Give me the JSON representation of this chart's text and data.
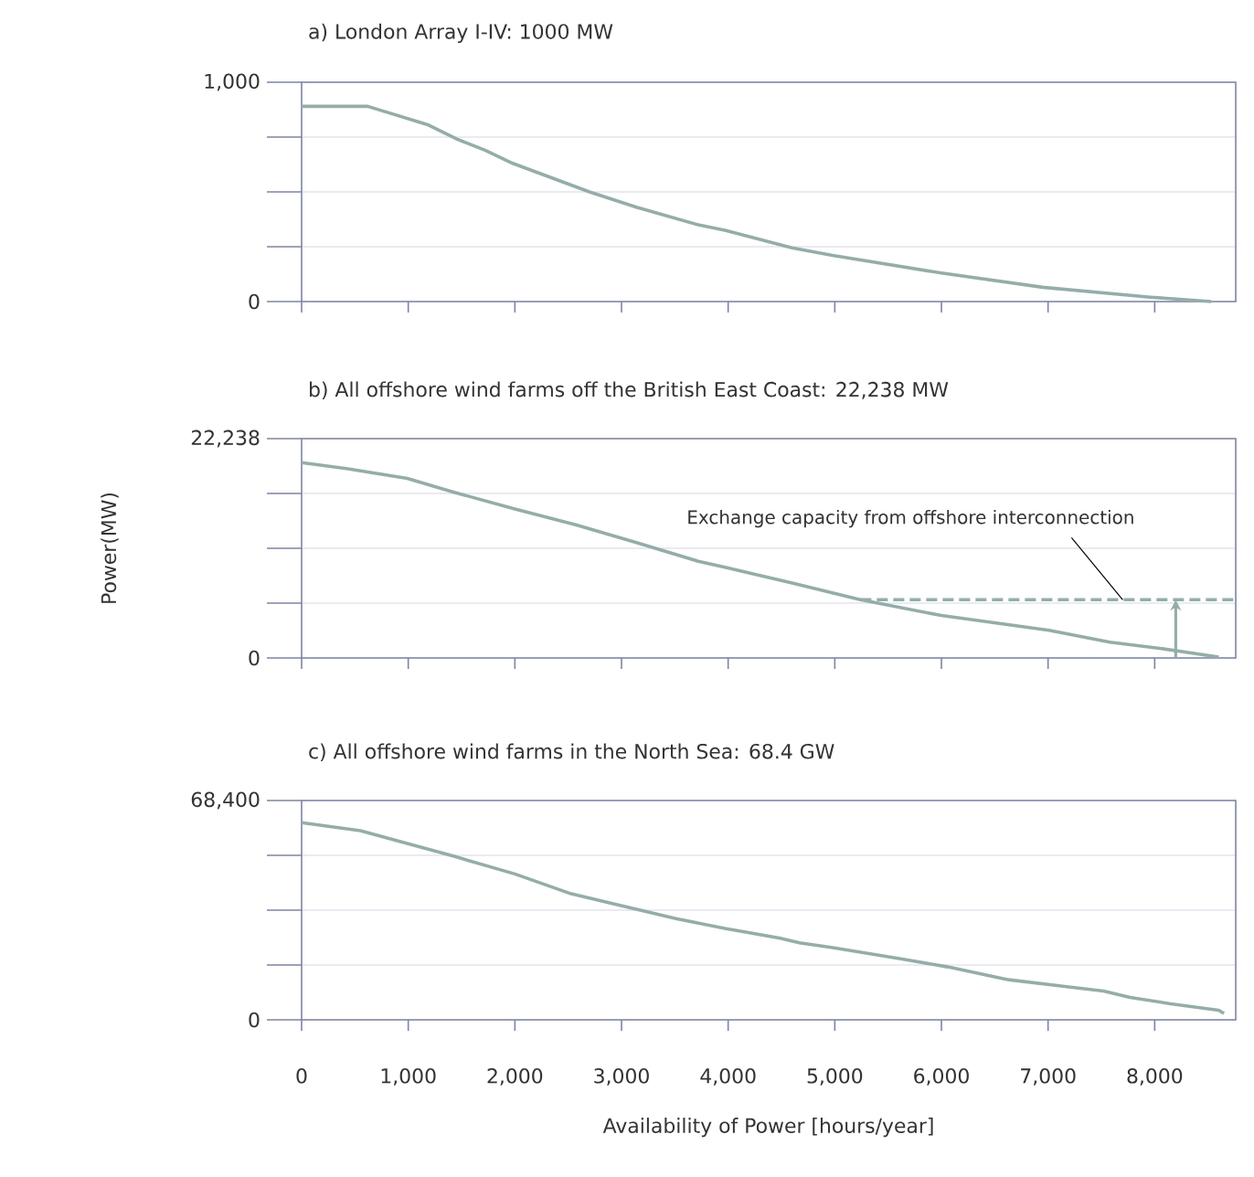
{
  "chart_data": [
    {
      "type": "line",
      "title": "a) London Array I-IV: 1000 MW",
      "x": [
        0,
        620,
        1190,
        1460,
        1720,
        1980,
        2700,
        3140,
        3720,
        3970,
        4600,
        4980,
        6000,
        6950,
        7960,
        8530
      ],
      "series": [
        {
          "color": "#94ada8",
          "values": [
            890,
            890,
            805,
            740,
            690,
            630,
            500,
            430,
            350,
            325,
            245,
            210,
            130,
            65,
            20,
            0
          ]
        }
      ],
      "xlim": [
        0,
        8760
      ],
      "xticks": [
        {
          "value": 0,
          "label": null
        },
        {
          "value": 1000,
          "label": null
        },
        {
          "value": 2000,
          "label": null
        },
        {
          "value": 3000,
          "label": null
        },
        {
          "value": 4000,
          "label": null
        },
        {
          "value": 5000,
          "label": null
        },
        {
          "value": 6000,
          "label": null
        },
        {
          "value": 7000,
          "label": null
        },
        {
          "value": 8000,
          "label": null
        }
      ],
      "ylim": [
        0,
        1000
      ],
      "yticks": [
        0,
        {
          "value": 250,
          "label": null
        },
        {
          "value": 500,
          "label": null
        },
        {
          "value": 750,
          "label": null
        },
        {
          "value": 1000,
          "label": "1,000"
        }
      ],
      "grid": "y",
      "tick_labels": "y"
    },
    {
      "type": "line",
      "title": "b) All offshore wind farms off the British East Coast: 22,238 MW",
      "ylabel": "Power(MW)",
      "series": [
        {
          "color": "#94ada8",
          "x": [
            0,
            420,
            990,
            1430,
            2000,
            2570,
            3140,
            3720,
            3970,
            4600,
            5240,
            6000,
            7010,
            7580,
            8030,
            8600
          ],
          "values": [
            19800,
            19200,
            18200,
            16800,
            15100,
            13500,
            11700,
            9800,
            9200,
            7600,
            5900,
            4300,
            2800,
            1600,
            1000,
            100
          ]
        },
        {
          "color": "#94ada8",
          "line_style": "dashed",
          "x": [
            5240,
            8760
          ],
          "values": [
            5900,
            5900
          ]
        }
      ],
      "annotations": [
        {
          "text": "Exchange capacity from offshore interconnection",
          "x": 7700,
          "y": 5900
        }
      ],
      "xlim": [
        0,
        8760
      ],
      "xticks": [
        {
          "value": 0,
          "label": null
        },
        {
          "value": 1000,
          "label": null
        },
        {
          "value": 2000,
          "label": null
        },
        {
          "value": 3000,
          "label": null
        },
        {
          "value": 4000,
          "label": null
        },
        {
          "value": 5000,
          "label": null
        },
        {
          "value": 6000,
          "label": null
        },
        {
          "value": 7000,
          "label": null
        },
        {
          "value": 8000,
          "label": null
        }
      ],
      "ylim": [
        0,
        22238
      ],
      "yticks": [
        0,
        {
          "value": 5559.5,
          "label": null
        },
        {
          "value": 11119,
          "label": null
        },
        {
          "value": 16678.5,
          "label": null
        },
        {
          "value": 22238,
          "label": "22,238"
        }
      ],
      "grid": "y",
      "tick_labels": "y"
    },
    {
      "type": "line",
      "title": "c) All offshore wind farms in the North Sea: 68.4 GW",
      "xlabel": "Availability of Power [hours/year]",
      "x": [
        0,
        550,
        990,
        1430,
        2000,
        2510,
        2950,
        3520,
        3970,
        4480,
        4670,
        4980,
        5620,
        6060,
        6630,
        7140,
        7520,
        7770,
        8150,
        8600,
        8650
      ],
      "series": [
        {
          "color": "#94ada8",
          "values": [
            61500,
            59000,
            55000,
            51000,
            45500,
            39500,
            36000,
            31500,
            28500,
            25500,
            24000,
            22500,
            19000,
            16500,
            12500,
            10500,
            9000,
            7000,
            5000,
            3000,
            2000
          ]
        }
      ],
      "xlim": [
        0,
        8760
      ],
      "xticks": [
        0,
        {
          "value": 1000,
          "label": "1,000"
        },
        {
          "value": 2000,
          "label": "2,000"
        },
        {
          "value": 3000,
          "label": "3,000"
        },
        {
          "value": 4000,
          "label": "4,000"
        },
        {
          "value": 5000,
          "label": "5,000"
        },
        {
          "value": 6000,
          "label": "6,000"
        },
        {
          "value": 7000,
          "label": "7,000"
        },
        {
          "value": 8000,
          "label": "8,000"
        }
      ],
      "ylim": [
        0,
        68400
      ],
      "yticks": [
        0,
        {
          "value": 17100,
          "label": null
        },
        {
          "value": 34200,
          "label": null
        },
        {
          "value": 51300,
          "label": null
        },
        {
          "value": 68400,
          "label": "68,400"
        }
      ],
      "grid": "y"
    }
  ]
}
